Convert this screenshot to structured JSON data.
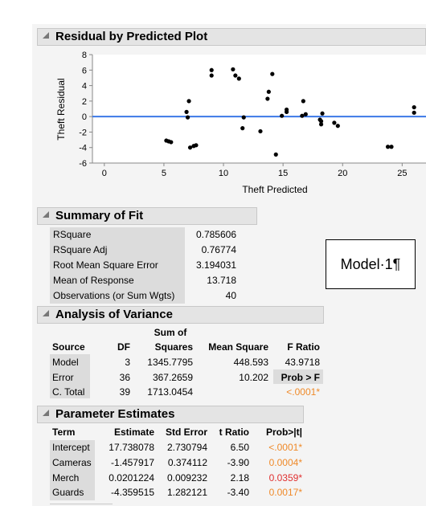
{
  "plot": {
    "title": "Residual by Predicted Plot",
    "ylabel": "Theft Residual",
    "xlabel": "Theft Predicted",
    "x_ticks": [
      "0",
      "5",
      "10",
      "15",
      "20",
      "25"
    ],
    "y_ticks": [
      "8",
      "6",
      "4",
      "2",
      "0",
      "-2",
      "-4",
      "-6"
    ],
    "ref_line_color": "#3b78e7",
    "point_color": "#000000"
  },
  "chart_data": {
    "type": "scatter",
    "xlabel": "Theft Predicted",
    "ylabel": "Theft Residual",
    "xlim": [
      -1,
      27
    ],
    "ylim": [
      -6,
      8
    ],
    "points": [
      [
        5.2,
        -3.1
      ],
      [
        5.4,
        -3.2
      ],
      [
        5.6,
        -3.3
      ],
      [
        6.9,
        0.6
      ],
      [
        7.0,
        -0.1
      ],
      [
        7.1,
        2.0
      ],
      [
        7.2,
        -4.0
      ],
      [
        7.5,
        -3.8
      ],
      [
        7.7,
        -3.7
      ],
      [
        9.0,
        6.0
      ],
      [
        9.0,
        5.3
      ],
      [
        10.8,
        6.1
      ],
      [
        11.0,
        5.3
      ],
      [
        11.3,
        4.9
      ],
      [
        11.7,
        -0.1
      ],
      [
        11.6,
        -1.5
      ],
      [
        13.1,
        -1.9
      ],
      [
        13.7,
        2.3
      ],
      [
        13.8,
        3.2
      ],
      [
        14.1,
        5.5
      ],
      [
        14.4,
        -4.9
      ],
      [
        14.9,
        0.1
      ],
      [
        15.3,
        0.9
      ],
      [
        15.3,
        0.6
      ],
      [
        16.6,
        0.1
      ],
      [
        16.7,
        2.0
      ],
      [
        16.9,
        0.3
      ],
      [
        18.1,
        -0.4
      ],
      [
        18.2,
        -0.6
      ],
      [
        18.2,
        -1.0
      ],
      [
        18.3,
        0.4
      ],
      [
        19.3,
        -0.8
      ],
      [
        19.6,
        -1.2
      ],
      [
        23.8,
        -3.9
      ],
      [
        24.1,
        -3.9
      ],
      [
        26.0,
        1.2
      ],
      [
        26.0,
        0.5
      ]
    ]
  },
  "summary": {
    "title": "Summary of Fit",
    "rows": [
      {
        "label": "RSquare",
        "value": "0.785606"
      },
      {
        "label": "RSquare Adj",
        "value": "0.76774"
      },
      {
        "label": "Root Mean Square Error",
        "value": "3.194031"
      },
      {
        "label": "Mean of Response",
        "value": "13.718"
      },
      {
        "label": "Observations (or Sum Wgts)",
        "value": "40"
      }
    ]
  },
  "anova": {
    "title": "Analysis of Variance",
    "h_source": "Source",
    "h_df": "DF",
    "h_sum1": "Sum of",
    "h_sum2": "Squares",
    "h_ms": "Mean Square",
    "h_f": "F Ratio",
    "rows": [
      {
        "source": "Model",
        "df": "3",
        "ss": "1345.7795",
        "ms": "448.593",
        "f": "43.9718"
      },
      {
        "source": "Error",
        "df": "36",
        "ss": "367.2659",
        "ms": "10.202",
        "f": "Prob > F"
      },
      {
        "source": "C. Total",
        "df": "39",
        "ss": "1713.0454",
        "ms": "",
        "f": "<.0001*"
      }
    ]
  },
  "params": {
    "title": "Parameter Estimates",
    "headers": [
      "Term",
      "Estimate",
      "Std Error",
      "t Ratio",
      "Prob>|t|"
    ],
    "rows": [
      {
        "term": "Intercept",
        "est": "17.738078",
        "se": "2.730794",
        "t": "6.50",
        "p": "<.0001*"
      },
      {
        "term": "Cameras",
        "est": "-1.457917",
        "se": "0.374112",
        "t": "-3.90",
        "p": "0.0004*"
      },
      {
        "term": "Merch",
        "est": "0.0201224",
        "se": "0.009232",
        "t": "2.18",
        "p": "0.0359*"
      },
      {
        "term": "Guards",
        "est": "-4.359515",
        "se": "1.282121",
        "t": "-3.40",
        "p": "0.0017*"
      }
    ]
  },
  "note": {
    "text": "Model·1¶"
  }
}
